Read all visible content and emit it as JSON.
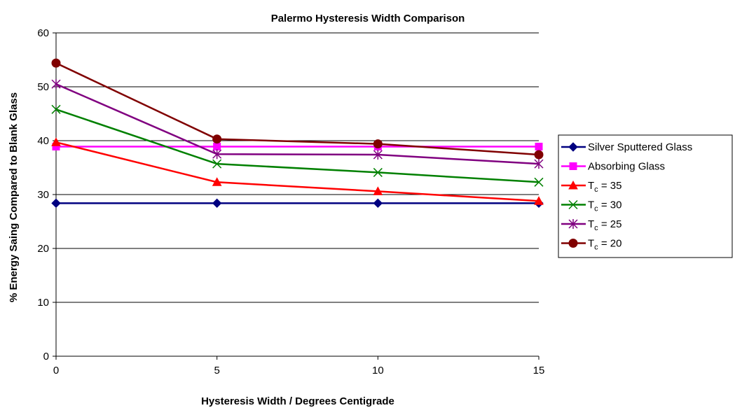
{
  "chart_data": {
    "type": "line",
    "title": "Palermo Hysteresis Width Comparison",
    "xlabel": "Hysteresis Width / Degrees Centigrade",
    "ylabel": "% Energy Saing Compared to Blank Glass",
    "x": [
      0,
      5,
      10,
      15
    ],
    "xlim": [
      0,
      15
    ],
    "ylim": [
      0,
      60
    ],
    "xticks": [
      "0",
      "5",
      "10",
      "15"
    ],
    "yticks": [
      "0",
      "10",
      "20",
      "30",
      "40",
      "50",
      "60"
    ],
    "grid": "horizontal",
    "legend_position": "right",
    "series": [
      {
        "name": "Silver Sputtered Glass",
        "label_main": "Silver Sputtered Glass",
        "label_sub": "",
        "label_tail": "",
        "color": "#000080",
        "marker": "diamond",
        "values": [
          28.4,
          28.4,
          28.4,
          28.4
        ]
      },
      {
        "name": "Absorbing Glass",
        "label_main": "Absorbing Glass",
        "label_sub": "",
        "label_tail": "",
        "color": "#FF00FF",
        "marker": "square",
        "values": [
          38.9,
          38.9,
          38.9,
          38.9
        ]
      },
      {
        "name": "Tc = 35",
        "label_main": "T",
        "label_sub": "c",
        "label_tail": " = 35",
        "color": "#FF0000",
        "marker": "triangle",
        "values": [
          39.7,
          32.3,
          30.6,
          28.8
        ]
      },
      {
        "name": "Tc = 30",
        "label_main": "T",
        "label_sub": "c",
        "label_tail": " = 30",
        "color": "#008000",
        "marker": "x",
        "values": [
          45.8,
          35.7,
          34.1,
          32.3
        ]
      },
      {
        "name": "Tc = 25",
        "label_main": "T",
        "label_sub": "c",
        "label_tail": " = 25",
        "color": "#800080",
        "marker": "star",
        "values": [
          50.5,
          37.5,
          37.4,
          35.7
        ]
      },
      {
        "name": "Tc = 20",
        "label_main": "T",
        "label_sub": "c",
        "label_tail": " = 20",
        "color": "#800000",
        "marker": "circle",
        "values": [
          54.4,
          40.3,
          39.4,
          37.4
        ]
      }
    ]
  }
}
